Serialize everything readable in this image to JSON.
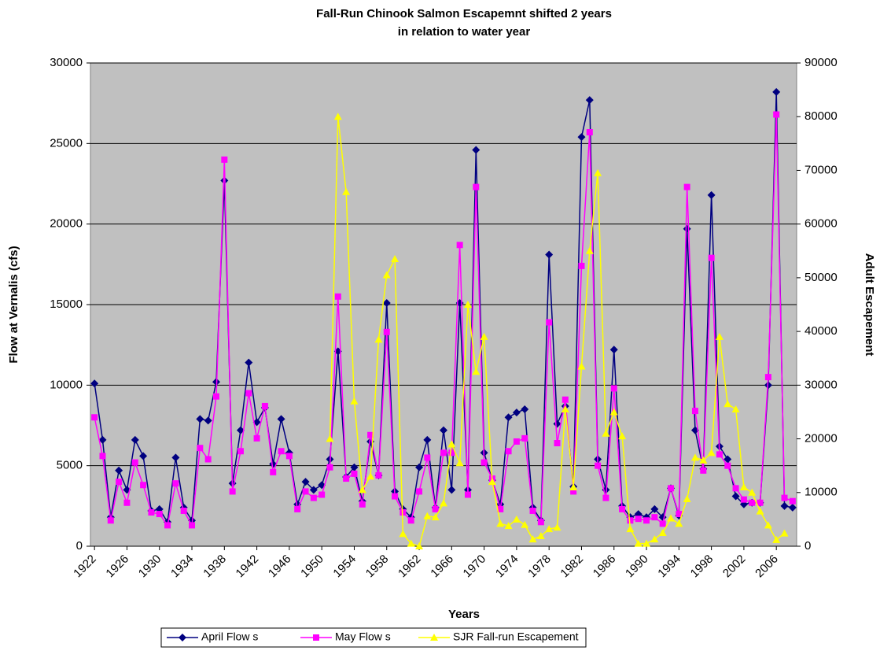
{
  "chart_data": {
    "type": "line",
    "title": "Fall-Run Chinook Salmon Escapemnt shifted 2 years",
    "subtitle": "in relation to water year",
    "x_label": "Years",
    "y_label": "Flow at Vernalis (cfs)",
    "y2_label": "Adult Escapement",
    "categories": [
      "1922",
      null,
      null,
      null,
      "1926",
      null,
      null,
      null,
      "1930",
      null,
      null,
      null,
      "1934",
      null,
      null,
      null,
      "1938",
      null,
      null,
      null,
      "1942",
      null,
      null,
      null,
      "1946",
      null,
      null,
      null,
      "1950",
      null,
      null,
      null,
      "1954",
      null,
      null,
      null,
      "1958",
      null,
      null,
      null,
      "1962",
      null,
      null,
      null,
      "1966",
      null,
      null,
      null,
      "1970",
      null,
      null,
      null,
      "1974",
      null,
      null,
      null,
      "1978",
      null,
      null,
      null,
      "1982",
      null,
      null,
      null,
      "1986",
      null,
      null,
      null,
      "1990",
      null,
      null,
      null,
      "1994",
      null,
      null,
      null,
      "1998",
      null,
      null,
      null,
      "2002",
      null,
      null,
      null,
      "2006",
      null,
      null
    ],
    "series": [
      {
        "name": "April Flow s",
        "color": "#000080",
        "marker": "diamond",
        "values": [
          10100,
          6600,
          1800,
          4700,
          3500,
          6600,
          5600,
          2200,
          2300,
          1500,
          5500,
          2400,
          1600,
          7900,
          7800,
          10200,
          22700,
          3900,
          7200,
          11400,
          7700,
          8600,
          5100,
          7900,
          5800,
          2600,
          4000,
          3500,
          3800,
          5400,
          12100,
          4300,
          4900,
          2800,
          6500,
          4400,
          15100,
          3400,
          2300,
          1800,
          4900,
          6600,
          2400,
          7200,
          3500,
          15100,
          3500,
          24600,
          5800,
          4100,
          2600,
          8000,
          8300,
          8500,
          2400,
          1600,
          18100,
          7600,
          8700,
          3700,
          25400,
          27700,
          5400,
          3500,
          12200,
          2500,
          1800,
          2000,
          1800,
          2300,
          1800,
          3600,
          1900,
          19700,
          7200,
          4800,
          21800,
          6200,
          5400,
          3100,
          2600,
          2700,
          2700,
          10000,
          28200,
          2500,
          2400
        ]
      },
      {
        "name": "May Flow s",
        "color": "#ff00ff",
        "marker": "square",
        "values": [
          8000,
          5600,
          1600,
          4000,
          2700,
          5200,
          3800,
          2100,
          2000,
          1300,
          3900,
          2200,
          1300,
          6100,
          5400,
          9300,
          24000,
          3400,
          5900,
          9500,
          6700,
          8700,
          4600,
          5900,
          5600,
          2300,
          3400,
          3000,
          3200,
          4900,
          15500,
          4200,
          4500,
          2600,
          6900,
          4400,
          13300,
          3100,
          2100,
          1600,
          3400,
          5500,
          2300,
          5800,
          5800,
          18700,
          3200,
          22300,
          5200,
          4200,
          2300,
          5900,
          6500,
          6700,
          2200,
          1500,
          13900,
          6400,
          9100,
          3400,
          17400,
          25700,
          5000,
          3000,
          9800,
          2300,
          1600,
          1700,
          1600,
          1800,
          1400,
          3600,
          2000,
          22300,
          8400,
          4700,
          17900,
          5700,
          5000,
          3600,
          2900,
          2700,
          2700,
          10500,
          26800,
          3000,
          2800
        ]
      },
      {
        "name": "SJR Fall-run Escapement",
        "color": "#ffff00",
        "marker": "triangle",
        "axis": "y2",
        "values": [
          null,
          null,
          null,
          null,
          null,
          null,
          null,
          null,
          null,
          null,
          null,
          null,
          null,
          null,
          null,
          null,
          null,
          null,
          null,
          null,
          null,
          null,
          null,
          null,
          null,
          null,
          null,
          null,
          null,
          20000,
          80000,
          66000,
          27000,
          10500,
          13000,
          38500,
          50500,
          53500,
          2300,
          500,
          0,
          5600,
          5400,
          8000,
          19000,
          15500,
          45000,
          32500,
          39000,
          12000,
          4200,
          3800,
          5000,
          4000,
          1300,
          1900,
          3200,
          3500,
          25500,
          11000,
          33500,
          55000,
          69500,
          21000,
          25000,
          20500,
          3200,
          500,
          500,
          1300,
          2500,
          5200,
          4200,
          8800,
          16500,
          16000,
          17400,
          39000,
          26500,
          25500,
          11000,
          10000,
          6500,
          3900,
          1200,
          2400,
          null
        ]
      }
    ],
    "ylim": [
      0,
      30000
    ],
    "yticks": [
      0,
      5000,
      10000,
      15000,
      20000,
      25000,
      30000
    ],
    "y2lim": [
      0,
      90000
    ],
    "y2ticks": [
      0,
      10000,
      20000,
      30000,
      40000,
      50000,
      60000,
      70000,
      80000,
      90000
    ],
    "grid": true,
    "legend_position": "bottom"
  }
}
